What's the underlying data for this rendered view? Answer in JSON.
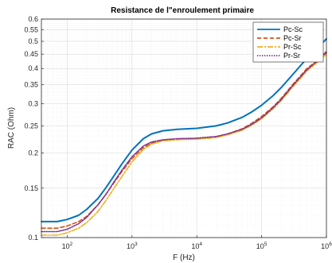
{
  "chart_data": {
    "type": "line",
    "title": "Resistance de l\"enroulement primaire",
    "xlabel": "F (Hz)",
    "ylabel": "RAC (Ohm)",
    "xscale": "log",
    "yscale": "log",
    "xlim": [
      40,
      1000000
    ],
    "ylim": [
      0.1,
      0.6
    ],
    "grid": true,
    "legend_position": "top-right",
    "x_ticks": [
      {
        "value": 100,
        "base": "10",
        "exp": "2"
      },
      {
        "value": 1000,
        "base": "10",
        "exp": "3"
      },
      {
        "value": 10000,
        "base": "10",
        "exp": "4"
      },
      {
        "value": 100000,
        "base": "10",
        "exp": "5"
      },
      {
        "value": 1000000,
        "base": "10",
        "exp": "6"
      }
    ],
    "y_ticks": [
      {
        "value": 0.1,
        "label": "0.1"
      },
      {
        "value": 0.15,
        "label": "0.15"
      },
      {
        "value": 0.2,
        "label": "0.2"
      },
      {
        "value": 0.25,
        "label": "0.25"
      },
      {
        "value": 0.3,
        "label": "0.3"
      },
      {
        "value": 0.35,
        "label": "0.35"
      },
      {
        "value": 0.4,
        "label": "0.4"
      },
      {
        "value": 0.45,
        "label": "0.45"
      },
      {
        "value": 0.5,
        "label": "0.5"
      },
      {
        "value": 0.55,
        "label": "0.55"
      },
      {
        "value": 0.6,
        "label": "0.6"
      }
    ],
    "x": [
      40,
      70,
      100,
      150,
      200,
      300,
      400,
      500,
      700,
      1000,
      1500,
      2000,
      3000,
      5000,
      10000,
      20000,
      30000,
      50000,
      70000,
      100000,
      150000,
      200000,
      300000,
      500000,
      700000,
      1000000
    ],
    "series": [
      {
        "name": "Pc-Sc",
        "color": "#0072BD",
        "dash": "solid",
        "values": [
          0.114,
          0.114,
          0.116,
          0.12,
          0.126,
          0.138,
          0.151,
          0.163,
          0.183,
          0.205,
          0.225,
          0.234,
          0.24,
          0.243,
          0.245,
          0.25,
          0.256,
          0.268,
          0.28,
          0.296,
          0.32,
          0.342,
          0.38,
          0.435,
          0.47,
          0.51
        ]
      },
      {
        "name": "Pc-Sr",
        "color": "#D95319",
        "dash": "dashed",
        "values": [
          0.108,
          0.108,
          0.11,
          0.114,
          0.119,
          0.131,
          0.143,
          0.154,
          0.172,
          0.191,
          0.209,
          0.217,
          0.222,
          0.224,
          0.225,
          0.229,
          0.234,
          0.244,
          0.255,
          0.27,
          0.292,
          0.313,
          0.35,
          0.4,
          0.425,
          0.455
        ]
      },
      {
        "name": "Pr-Sc",
        "color": "#EDB120",
        "dash": "dashdot",
        "values": [
          0.102,
          0.102,
          0.104,
          0.108,
          0.113,
          0.124,
          0.136,
          0.147,
          0.165,
          0.186,
          0.206,
          0.215,
          0.221,
          0.223,
          0.224,
          0.227,
          0.232,
          0.241,
          0.251,
          0.265,
          0.287,
          0.307,
          0.343,
          0.392,
          0.418,
          0.45
        ]
      },
      {
        "name": "Pr-Sr",
        "color": "#7E2F8E",
        "dash": "dotted",
        "values": [
          0.105,
          0.105,
          0.107,
          0.112,
          0.118,
          0.131,
          0.143,
          0.155,
          0.174,
          0.194,
          0.212,
          0.219,
          0.223,
          0.225,
          0.226,
          0.229,
          0.234,
          0.243,
          0.253,
          0.267,
          0.29,
          0.31,
          0.347,
          0.396,
          0.423,
          0.46
        ]
      }
    ]
  }
}
